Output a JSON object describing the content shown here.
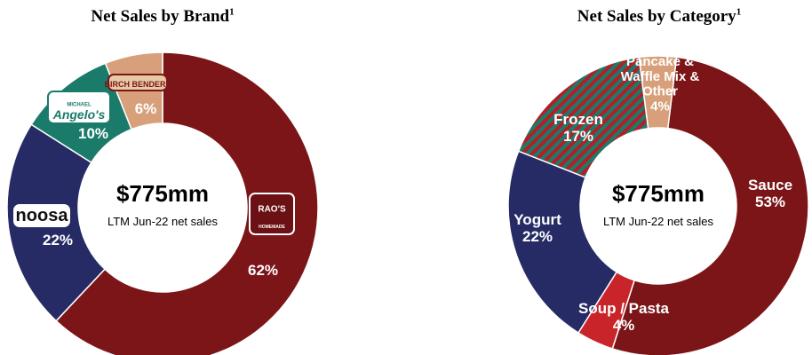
{
  "chart_data": [
    {
      "type": "pie",
      "title": "Net Sales by Brand",
      "title_footnote": "1",
      "center_value": "$775mm",
      "center_caption": "LTM Jun-22 net sales",
      "slices": [
        {
          "name": "Rao's",
          "value": 62,
          "label": "62%",
          "color": "#7b1518",
          "logo_text": [
            "RAO'S",
            "HOMEMADE"
          ]
        },
        {
          "name": "noosa",
          "value": 22,
          "label": "22%",
          "color": "#262b66",
          "logo_text": [
            "noosa"
          ]
        },
        {
          "name": "Michael Angelo's",
          "value": 10,
          "label": "10%",
          "color": "#1b7b6b",
          "logo_text": [
            "MICHAEL",
            "Angelo's"
          ]
        },
        {
          "name": "Birch Benders",
          "value": 6,
          "label": "6%",
          "color": "#d7a07a",
          "logo_text": [
            "BIRCH BENDERS"
          ]
        }
      ]
    },
    {
      "type": "pie",
      "title": "Net Sales by Category",
      "title_footnote": "1",
      "center_value": "$775mm",
      "center_caption": "LTM Jun-22 net sales",
      "slices": [
        {
          "name": "Sauce",
          "value": 53,
          "label": [
            "Sauce",
            "53%"
          ],
          "color": "#7b1518"
        },
        {
          "name": "Soup / Pasta",
          "value": 4,
          "label": [
            "Soup / Pasta",
            "4%"
          ],
          "color": "#c8242a"
        },
        {
          "name": "Yogurt",
          "value": 22,
          "label": [
            "Yogurt",
            "22%"
          ],
          "color": "#262b66"
        },
        {
          "name": "Frozen",
          "value": 17,
          "label": [
            "Frozen",
            "17%"
          ],
          "color": "#1b7b6b",
          "stripe_color": "#b21f26"
        },
        {
          "name": "Pancake & Waffle Mix & Other",
          "value": 4,
          "label": [
            "Pancake &",
            "Waffle Mix &",
            "Other",
            "4%"
          ],
          "color": "#d7a07a"
        }
      ]
    }
  ]
}
